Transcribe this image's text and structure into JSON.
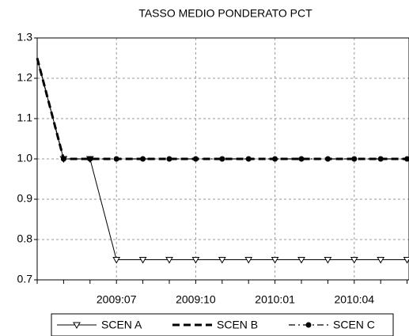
{
  "chart_data": {
    "type": "line",
    "title": "TASSO MEDIO PONDERATO PCT",
    "categories": [
      null,
      null,
      null,
      "2009:07",
      null,
      null,
      "2009:10",
      null,
      null,
      "2010:01",
      null,
      null,
      "2010:04",
      null,
      null
    ],
    "series": [
      {
        "name": "SCEN A",
        "color": "#000000",
        "dash": "solid",
        "marker": "triangle-down",
        "values": [
          1.25,
          1.0,
          1.0,
          0.75,
          0.75,
          0.75,
          0.75,
          0.75,
          0.75,
          0.75,
          0.75,
          0.75,
          0.75,
          0.75,
          0.75
        ]
      },
      {
        "name": "SCEN B",
        "color": "#000000",
        "dash": "dashed",
        "marker": "none",
        "values": [
          1.25,
          1.0,
          1.0,
          1.0,
          1.0,
          1.0,
          1.0,
          1.0,
          1.0,
          1.0,
          1.0,
          1.0,
          1.0,
          1.0,
          1.0
        ]
      },
      {
        "name": "SCEN C",
        "color": "#000000",
        "dash": "dashdot",
        "marker": "circle",
        "values": [
          1.25,
          1.0,
          1.0,
          1.0,
          1.0,
          1.0,
          1.0,
          1.0,
          1.0,
          1.0,
          1.0,
          1.0,
          1.0,
          1.0,
          1.0
        ]
      }
    ],
    "ylim": [
      0.7,
      1.3
    ],
    "yticks": [
      0.7,
      0.8,
      0.9,
      {
        "value": 1,
        "label": "1.0"
      },
      1.1,
      1.2,
      1.3
    ],
    "grid": true,
    "legend": "bottom"
  }
}
